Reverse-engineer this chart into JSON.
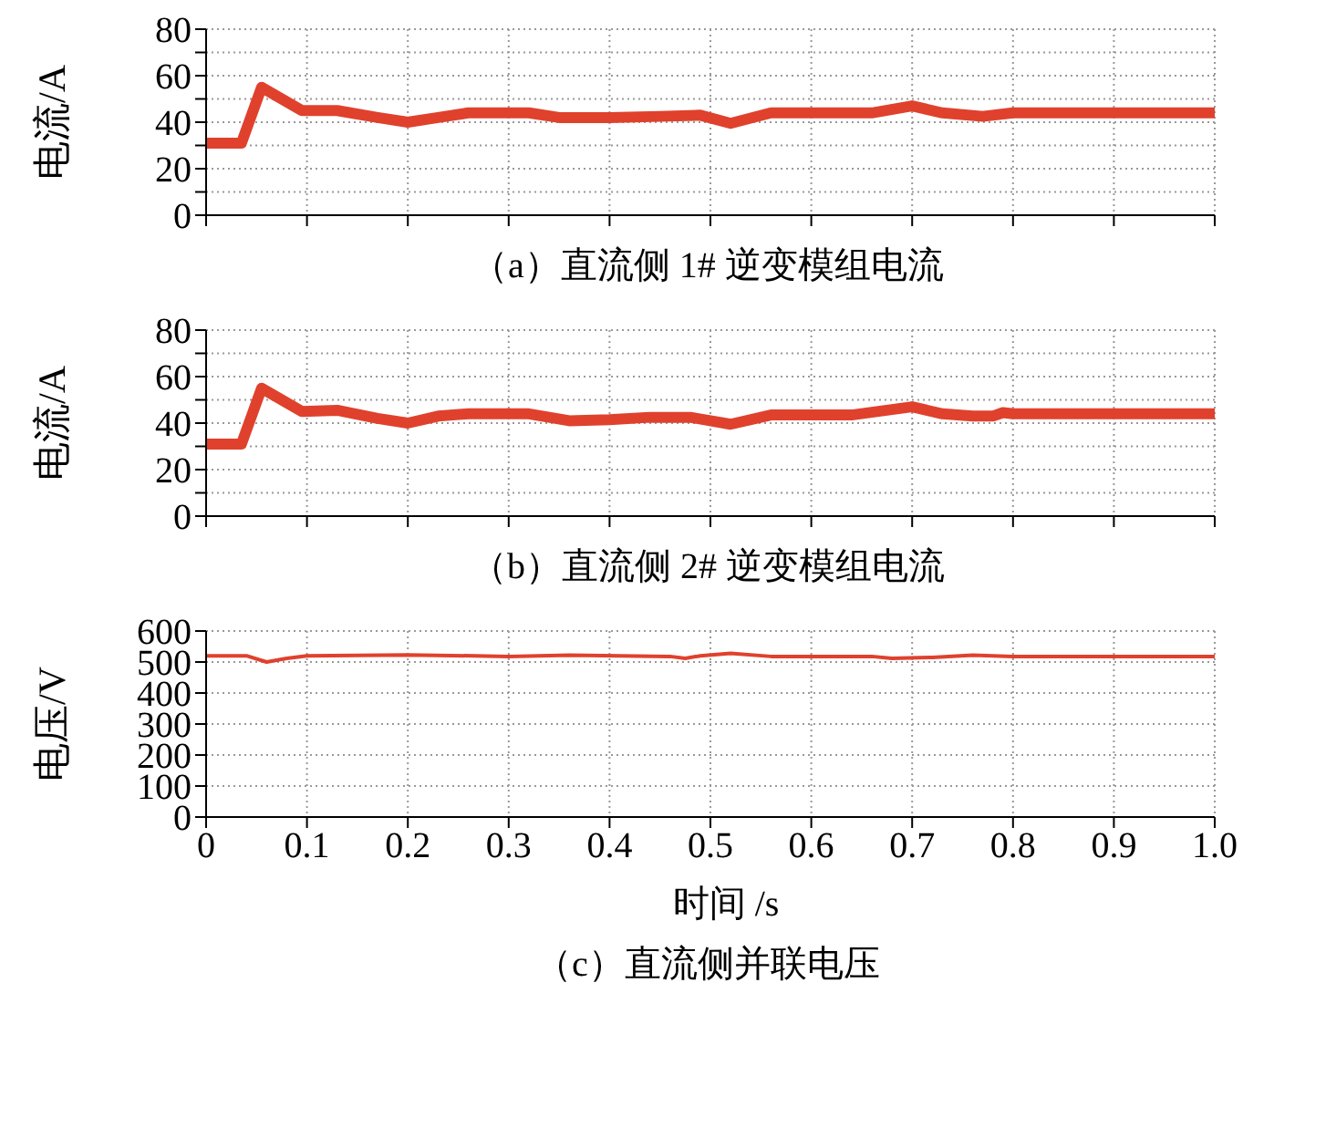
{
  "chart_data": [
    {
      "type": "line",
      "title": "（a）直流侧 1# 逆变模组电流",
      "ylabel": "电流/A",
      "color": "#e0412d",
      "x": [
        0,
        0.035,
        0.055,
        0.095,
        0.13,
        0.17,
        0.2,
        0.23,
        0.26,
        0.32,
        0.35,
        0.4,
        0.45,
        0.49,
        0.52,
        0.56,
        0.66,
        0.7,
        0.73,
        0.77,
        0.8,
        1.0
      ],
      "values": [
        31,
        31,
        55,
        45,
        45,
        42,
        40,
        42,
        44,
        44,
        42,
        42,
        42.5,
        43,
        39.5,
        44,
        44,
        47,
        44,
        42.5,
        44,
        44
      ],
      "xlim": [
        0,
        1
      ],
      "xticks": [
        0,
        0.1,
        0.2,
        0.3,
        0.4,
        0.5,
        0.6,
        0.7,
        0.8,
        0.9,
        1.0
      ],
      "ylim": [
        0,
        80
      ],
      "yticks": [
        0,
        {
          "value": 10,
          "label": null
        },
        20,
        {
          "value": 30,
          "label": null
        },
        40,
        {
          "value": 50,
          "label": null
        },
        60,
        {
          "value": 70,
          "label": null
        },
        80
      ],
      "tick_labels": "y",
      "grid": true,
      "legend": false
    },
    {
      "type": "line",
      "title": "（b）直流侧 2# 逆变模组电流",
      "ylabel": "电流/A",
      "color": "#e0412d",
      "x": [
        0,
        0.035,
        0.055,
        0.095,
        0.13,
        0.17,
        0.2,
        0.23,
        0.26,
        0.32,
        0.36,
        0.4,
        0.44,
        0.48,
        0.52,
        0.56,
        0.64,
        0.7,
        0.73,
        0.76,
        0.78,
        0.79,
        0.8,
        1.0
      ],
      "values": [
        31,
        31,
        55,
        45,
        45.5,
        42,
        40,
        43,
        44,
        44,
        41,
        41.5,
        42.5,
        42.5,
        39.5,
        43.5,
        43.5,
        47,
        44,
        43,
        43,
        44.5,
        44,
        44
      ],
      "xlim": [
        0,
        1
      ],
      "xticks": [
        0,
        0.1,
        0.2,
        0.3,
        0.4,
        0.5,
        0.6,
        0.7,
        0.8,
        0.9,
        1.0
      ],
      "ylim": [
        0,
        80
      ],
      "yticks": [
        0,
        {
          "value": 10,
          "label": null
        },
        20,
        {
          "value": 30,
          "label": null
        },
        40,
        {
          "value": 50,
          "label": null
        },
        60,
        {
          "value": 70,
          "label": null
        },
        80
      ],
      "tick_labels": "y",
      "grid": true,
      "legend": false
    },
    {
      "type": "line",
      "title": "（c）直流侧并联电压",
      "xlabel": "时间 /s",
      "ylabel": "电压/V",
      "color": "#e0412d",
      "x": [
        0,
        0.04,
        0.06,
        0.08,
        0.1,
        0.2,
        0.3,
        0.36,
        0.46,
        0.475,
        0.49,
        0.52,
        0.56,
        0.66,
        0.68,
        0.72,
        0.76,
        0.8,
        1.0
      ],
      "values": [
        520,
        520,
        500,
        512,
        520,
        523,
        518,
        522,
        518,
        512,
        520,
        528,
        518,
        518,
        512,
        515,
        522,
        518,
        518
      ],
      "xlim": [
        0,
        1
      ],
      "xticks": [
        0,
        0.1,
        0.2,
        0.3,
        0.4,
        0.5,
        0.6,
        0.7,
        0.8,
        0.9,
        {
          "value": 1,
          "label": "1.0"
        }
      ],
      "ylim": [
        0,
        600
      ],
      "yticks": [
        0,
        100,
        200,
        300,
        400,
        500,
        600
      ],
      "grid": true,
      "legend": false
    }
  ]
}
